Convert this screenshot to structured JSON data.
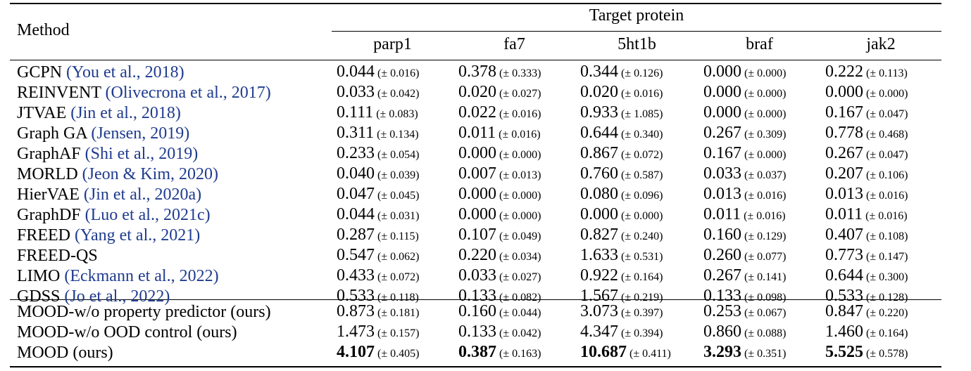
{
  "header": {
    "method_label": "Method",
    "target_label": "Target protein",
    "columns": [
      "parp1",
      "fa7",
      "5ht1b",
      "braf",
      "jak2"
    ]
  },
  "rows": [
    {
      "name": "GCPN",
      "cite": "(You et al., 2018)",
      "cells": [
        [
          "0.044",
          "(± 0.016)"
        ],
        [
          "0.378",
          "(± 0.333)"
        ],
        [
          "0.344",
          "(± 0.126)"
        ],
        [
          "0.000",
          "(± 0.000)"
        ],
        [
          "0.222",
          "(± 0.113)"
        ]
      ]
    },
    {
      "name": "REINVENT",
      "cite": "(Olivecrona et al., 2017)",
      "cells": [
        [
          "0.033",
          "(± 0.042)"
        ],
        [
          "0.020",
          "(± 0.027)"
        ],
        [
          "0.020",
          "(± 0.016)"
        ],
        [
          "0.000",
          "(± 0.000)"
        ],
        [
          "0.000",
          "(± 0.000)"
        ]
      ]
    },
    {
      "name": "JTVAE",
      "cite": "(Jin et al., 2018)",
      "cells": [
        [
          "0.111",
          "(± 0.083)"
        ],
        [
          "0.022",
          "(± 0.016)"
        ],
        [
          "0.933",
          "(± 1.085)"
        ],
        [
          "0.000",
          "(± 0.000)"
        ],
        [
          "0.167",
          "(± 0.047)"
        ]
      ]
    },
    {
      "name": "Graph GA",
      "cite": "(Jensen, 2019)",
      "cells": [
        [
          "0.311",
          "(± 0.134)"
        ],
        [
          "0.011",
          "(± 0.016)"
        ],
        [
          "0.644",
          "(± 0.340)"
        ],
        [
          "0.267",
          "(± 0.309)"
        ],
        [
          "0.778",
          "(± 0.468)"
        ]
      ]
    },
    {
      "name": "GraphAF",
      "cite": "(Shi et al., 2019)",
      "cells": [
        [
          "0.233",
          "(± 0.054)"
        ],
        [
          "0.000",
          "(± 0.000)"
        ],
        [
          "0.867",
          "(± 0.072)"
        ],
        [
          "0.167",
          "(± 0.000)"
        ],
        [
          "0.267",
          "(± 0.047)"
        ]
      ]
    },
    {
      "name": "MORLD",
      "cite": "(Jeon & Kim, 2020)",
      "cells": [
        [
          "0.040",
          "(± 0.039)"
        ],
        [
          "0.007",
          "(± 0.013)"
        ],
        [
          "0.760",
          "(± 0.587)"
        ],
        [
          "0.033",
          "(± 0.037)"
        ],
        [
          "0.207",
          "(± 0.106)"
        ]
      ]
    },
    {
      "name": "HierVAE",
      "cite": "(Jin et al., 2020a)",
      "cells": [
        [
          "0.047",
          "(± 0.045)"
        ],
        [
          "0.000",
          "(± 0.000)"
        ],
        [
          "0.080",
          "(± 0.096)"
        ],
        [
          "0.013",
          "(± 0.016)"
        ],
        [
          "0.013",
          "(± 0.016)"
        ]
      ]
    },
    {
      "name": "GraphDF",
      "cite": "(Luo et al., 2021c)",
      "cells": [
        [
          "0.044",
          "(± 0.031)"
        ],
        [
          "0.000",
          "(± 0.000)"
        ],
        [
          "0.000",
          "(± 0.000)"
        ],
        [
          "0.011",
          "(± 0.016)"
        ],
        [
          "0.011",
          "(± 0.016)"
        ]
      ]
    },
    {
      "name": "FREED",
      "cite": "(Yang et al., 2021)",
      "cells": [
        [
          "0.287",
          "(± 0.115)"
        ],
        [
          "0.107",
          "(± 0.049)"
        ],
        [
          "0.827",
          "(± 0.240)"
        ],
        [
          "0.160",
          "(± 0.129)"
        ],
        [
          "0.407",
          "(± 0.108)"
        ]
      ]
    },
    {
      "name": "FREED-QS",
      "cite": "",
      "cells": [
        [
          "0.547",
          "(± 0.062)"
        ],
        [
          "0.220",
          "(± 0.034)"
        ],
        [
          "1.633",
          "(± 0.531)"
        ],
        [
          "0.260",
          "(± 0.077)"
        ],
        [
          "0.773",
          "(± 0.147)"
        ]
      ]
    },
    {
      "name": "LIMO",
      "cite": "(Eckmann et al., 2022)",
      "cells": [
        [
          "0.433",
          "(± 0.072)"
        ],
        [
          "0.033",
          "(± 0.027)"
        ],
        [
          "0.922",
          "(± 0.164)"
        ],
        [
          "0.267",
          "(± 0.141)"
        ],
        [
          "0.644",
          "(± 0.300)"
        ]
      ]
    },
    {
      "name": "GDSS",
      "cite": "(Jo et al., 2022)",
      "cells": [
        [
          "0.533",
          "(± 0.118)"
        ],
        [
          "0.133",
          "(± 0.082)"
        ],
        [
          "1.567",
          "(± 0.219)"
        ],
        [
          "0.133",
          "(± 0.098)"
        ],
        [
          "0.533",
          "(± 0.128)"
        ]
      ]
    }
  ],
  "ours": [
    {
      "name": "MOOD-w/o property predictor (ours)",
      "cells": [
        [
          "0.873",
          "(± 0.181)"
        ],
        [
          "0.160",
          "(± 0.044)"
        ],
        [
          "3.073",
          "(± 0.397)"
        ],
        [
          "0.253",
          "(± 0.067)"
        ],
        [
          "0.847",
          "(± 0.220)"
        ]
      ]
    },
    {
      "name": "MOOD-w/o OOD control (ours)",
      "cells": [
        [
          "1.473",
          "(± 0.157)"
        ],
        [
          "0.133",
          "(± 0.042)"
        ],
        [
          "4.347",
          "(± 0.394)"
        ],
        [
          "0.860",
          "(± 0.088)"
        ],
        [
          "1.460",
          "(± 0.164)"
        ]
      ]
    },
    {
      "name": "MOOD (ours)",
      "bold": true,
      "cells": [
        [
          "4.107",
          "(± 0.405)"
        ],
        [
          "0.387",
          "(± 0.163)"
        ],
        [
          "10.687",
          "(± 0.411)"
        ],
        [
          "3.293",
          "(± 0.351)"
        ],
        [
          "5.525",
          "(± 0.578)"
        ]
      ]
    }
  ]
}
